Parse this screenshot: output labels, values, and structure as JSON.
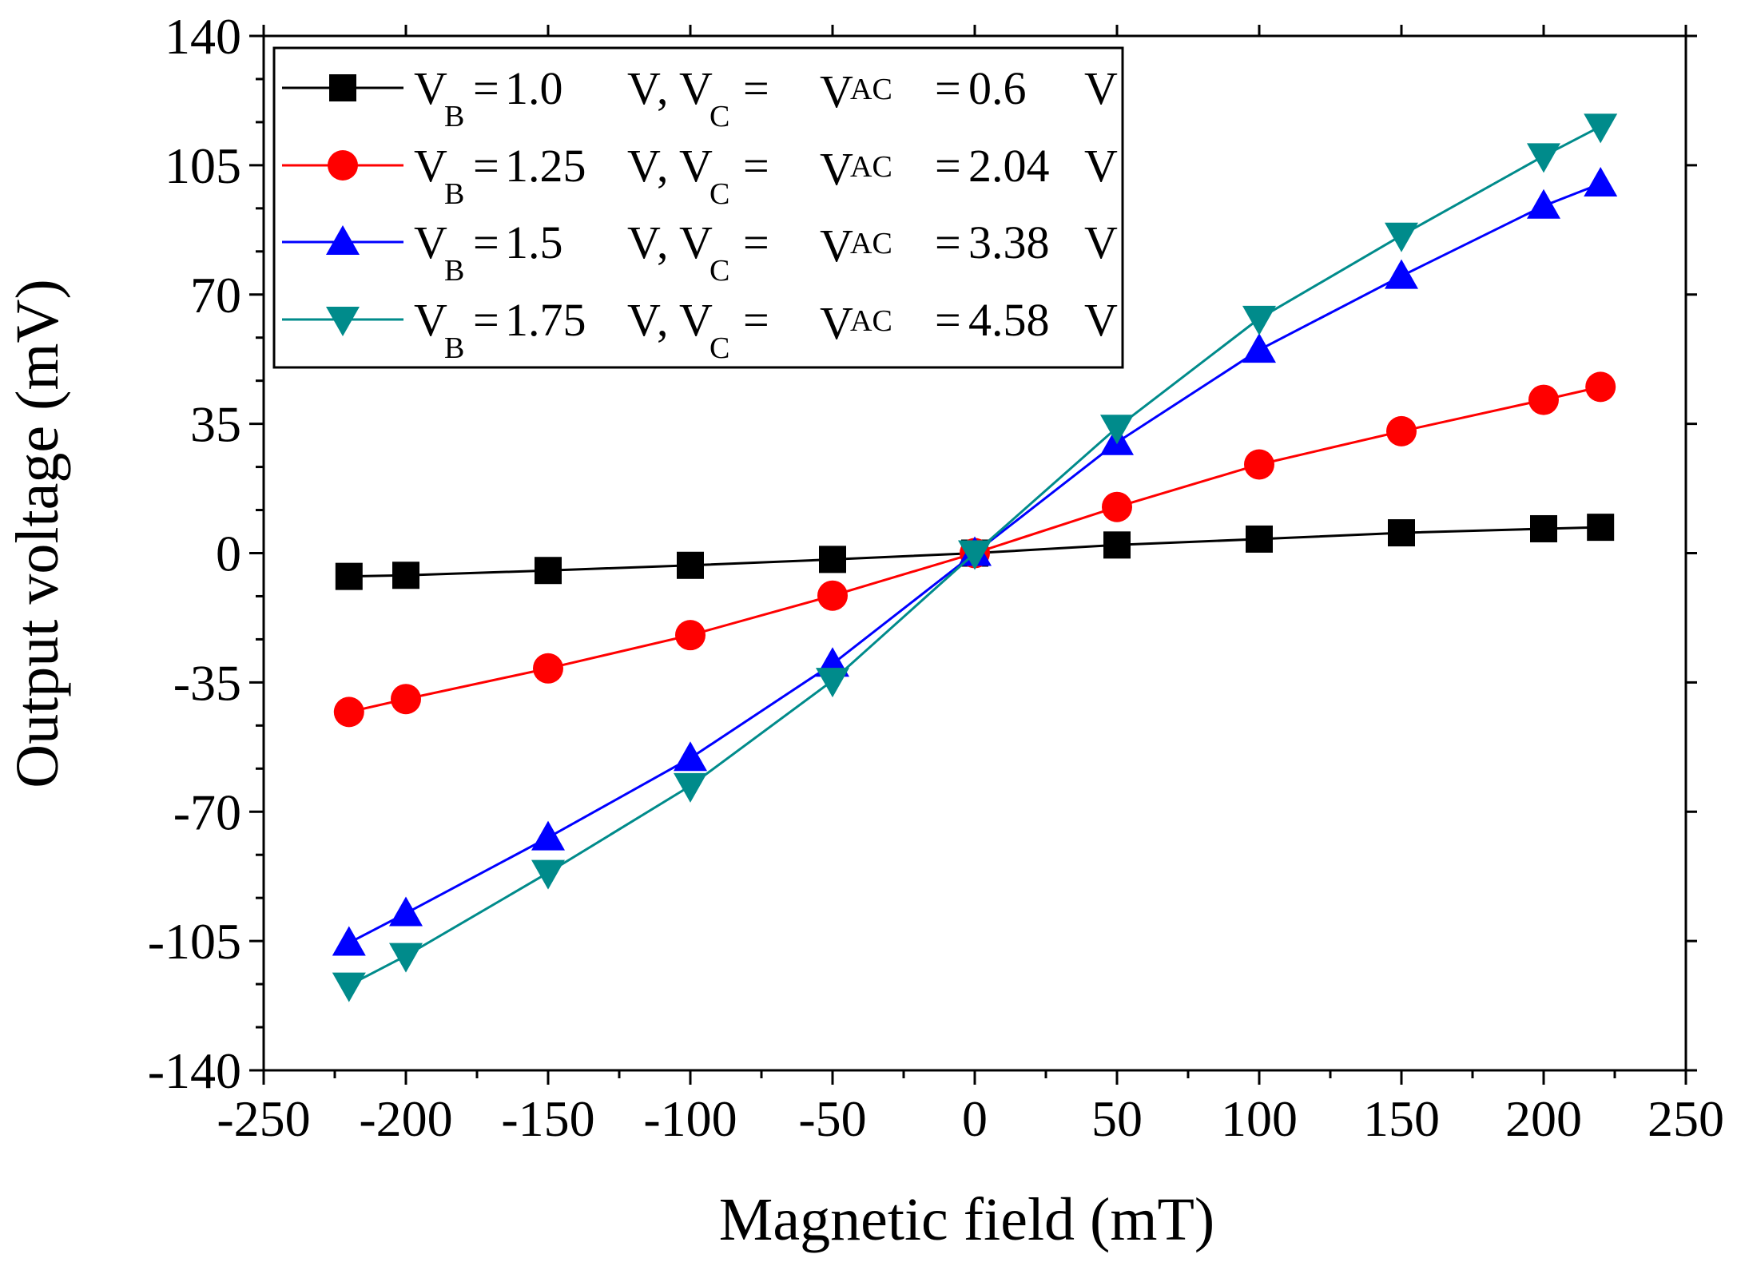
{
  "chart_data": {
    "type": "line",
    "title": "",
    "xlabel": "Magnetic field (mT)",
    "ylabel": "Output voltage (mV)",
    "xlim": [
      -250,
      250
    ],
    "ylim": [
      -140,
      140
    ],
    "xticks": [
      -250,
      -200,
      -150,
      -100,
      -50,
      0,
      50,
      100,
      150,
      200,
      250
    ],
    "yticks": [
      -140,
      -105,
      -70,
      -35,
      0,
      35,
      70,
      105,
      140
    ],
    "xtick_labels": [
      "-250",
      "-200",
      "-150",
      "-100",
      "-50",
      "0",
      "50",
      "100",
      "150",
      "200",
      "250"
    ],
    "ytick_labels": [
      "-140",
      "-105",
      "-70",
      "-35",
      "0",
      "35",
      "70",
      "105",
      "140"
    ],
    "grid": false,
    "legend_position": "top-left",
    "x": [
      -220,
      -200,
      -150,
      -100,
      -50,
      0,
      50,
      100,
      150,
      200,
      220
    ],
    "series": [
      {
        "name": "V_B = 1.0 V, V_C = V_AC = 0.6 V",
        "legend": {
          "vb": "1.0",
          "vc": "0.6",
          "unit": "V"
        },
        "color": "#000000",
        "marker": "square",
        "values": [
          -6.3,
          -6.0,
          -4.7,
          -3.3,
          -1.7,
          0,
          2.2,
          3.8,
          5.5,
          6.6,
          7.0
        ]
      },
      {
        "name": "V_B = 1.25 V, V_C = V_AC = 2.04 V",
        "legend": {
          "vb": "1.25",
          "vc": "2.04",
          "unit": "V"
        },
        "color": "#ff0000",
        "marker": "circle",
        "values": [
          -43,
          -39.5,
          -31.2,
          -22.2,
          -11.5,
          0,
          12.5,
          24,
          33,
          41.5,
          45
        ]
      },
      {
        "name": "V_B = 1.5 V, V_C = V_AC = 3.38 V",
        "legend": {
          "vb": "1.5",
          "vc": "3.38",
          "unit": "V"
        },
        "color": "#0000ff",
        "marker": "triangle-up",
        "values": [
          -105.5,
          -97.5,
          -77,
          -55.5,
          -30,
          0,
          30,
          55,
          75,
          94,
          100
        ]
      },
      {
        "name": "V_B = 1.75 V, V_C = V_AC = 4.58 V",
        "legend": {
          "vb": "1.75",
          "vc": "4.58",
          "unit": "V"
        },
        "color": "#008b8b",
        "marker": "triangle-down",
        "values": [
          -117,
          -109,
          -86.5,
          -63,
          -34.5,
          0,
          34,
          63.5,
          86,
          107.5,
          115.5
        ]
      }
    ],
    "legend_text": {
      "v": "V",
      "sub_b": "B",
      "sub_c": "C",
      "sub_ac": "AC",
      "eq": "=",
      "sep": ",",
      "unit": "V"
    }
  }
}
